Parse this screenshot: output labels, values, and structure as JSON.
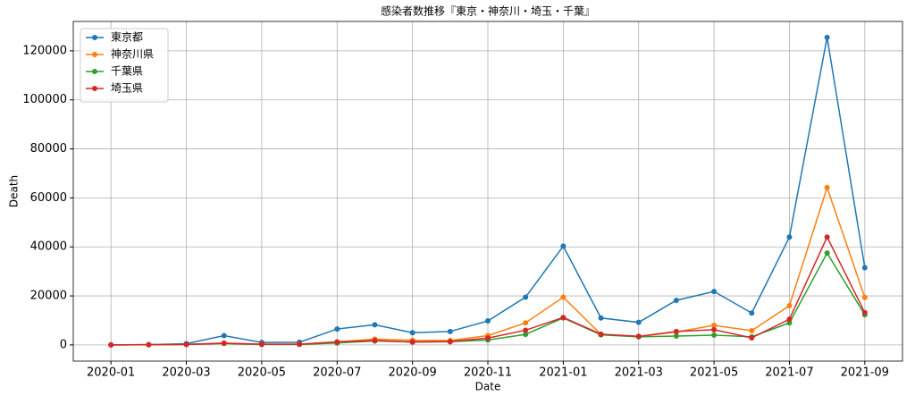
{
  "chart_data": {
    "type": "line",
    "title": "感染者数推移『東京・神奈川・埼玉・千葉』",
    "x_label": "Date",
    "y_label": "Death",
    "x": [
      "2020-01",
      "2020-02",
      "2020-03",
      "2020-04",
      "2020-05",
      "2020-06",
      "2020-07",
      "2020-08",
      "2020-09",
      "2020-10",
      "2020-11",
      "2020-12",
      "2021-01",
      "2021-02",
      "2021-03",
      "2021-04",
      "2021-05",
      "2021-06",
      "2021-07",
      "2021-08",
      "2021-09"
    ],
    "series": [
      {
        "name": "東京都",
        "color": "#1f77b4",
        "values": [
          0,
          100,
          500,
          3800,
          1000,
          1100,
          6500,
          8200,
          5000,
          5500,
          9800,
          19500,
          40300,
          11000,
          9200,
          18200,
          21800,
          13000,
          44000,
          125500,
          31500
        ]
      },
      {
        "name": "神奈川県",
        "color": "#ff7f0e",
        "values": [
          0,
          100,
          200,
          800,
          300,
          300,
          1300,
          2400,
          1900,
          1800,
          3800,
          9000,
          19500,
          4300,
          3400,
          5300,
          8000,
          5800,
          16000,
          64200,
          19400
        ]
      },
      {
        "name": "千葉県",
        "color": "#2ca02c",
        "values": [
          0,
          50,
          200,
          600,
          200,
          200,
          800,
          1600,
          1200,
          1300,
          2000,
          4300,
          11000,
          4100,
          3300,
          3600,
          4000,
          3300,
          9000,
          37500,
          12300
        ]
      },
      {
        "name": "埼玉県",
        "color": "#d62728",
        "values": [
          0,
          80,
          200,
          700,
          300,
          300,
          1200,
          1800,
          1200,
          1400,
          2800,
          6000,
          11200,
          4400,
          3500,
          5500,
          6200,
          2900,
          10500,
          44000,
          13200
        ]
      }
    ],
    "xlim": [
      "2019-12",
      "2021-10"
    ],
    "xticks": [
      "2020-01",
      "2020-03",
      "2020-05",
      "2020-07",
      "2020-09",
      "2020-11",
      "2021-01",
      "2021-03",
      "2021-05",
      "2021-07",
      "2021-09"
    ],
    "ylim": [
      -6600,
      132000
    ],
    "yticks": [
      0,
      20000,
      40000,
      60000,
      80000,
      100000,
      120000
    ],
    "grid": true,
    "legend": "upper left"
  }
}
